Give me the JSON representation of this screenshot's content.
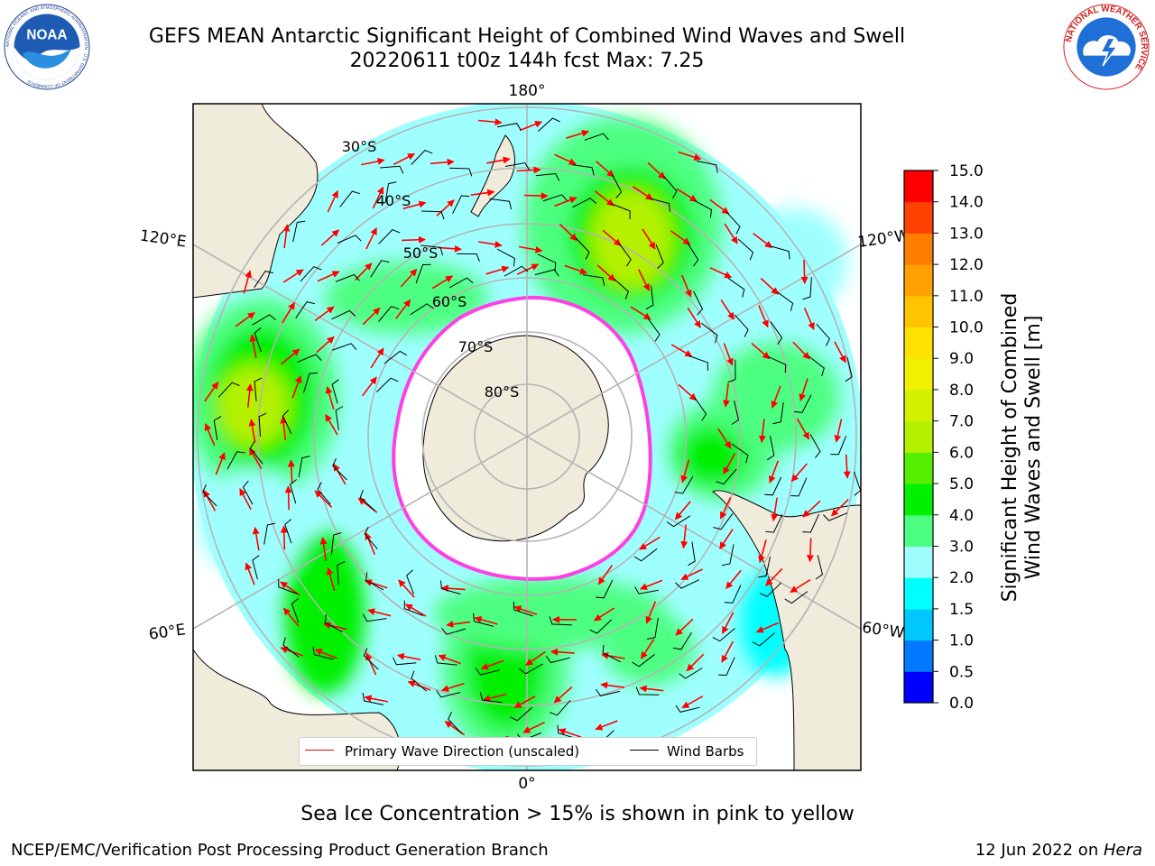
{
  "header": {
    "title_line1": "GEFS MEAN Antarctic Significant Height of Combined Wind Waves and Swell",
    "title_line2": "20220611 t00z 144h fcst   Max: 7.25"
  },
  "logos": {
    "noaa": "NOAA",
    "noaa_ring": "NATIONAL OCEANIC AND ATMOSPHERIC ADMINISTRATION · U.S. DEPARTMENT OF COMMERCE",
    "nws_ring": "NATIONAL WEATHER SERVICE"
  },
  "map": {
    "longitude_labels": {
      "top": "180°",
      "bottom": "0°",
      "upper_left": "120°E",
      "upper_right": "120°W",
      "lower_left": "60°E",
      "lower_right": "60°W"
    },
    "latitude_labels": [
      "30°S",
      "40°S",
      "50°S",
      "60°S",
      "70°S",
      "80°S"
    ],
    "colors": {
      "land": "#efecdc",
      "ice": "#ffffff",
      "ice_edge": "#ff3fe6",
      "grid": "#b4b4b4",
      "wave_arrow": "#ff0000",
      "barb": "#000000"
    }
  },
  "legend": {
    "primary": "Primary Wave Direction (unscaled)",
    "barbs": "Wind Barbs"
  },
  "colorbar": {
    "label_line1": "Significant Height of Combined",
    "label_line2": "Wind Waves and Swell [m]",
    "ticks": [
      "0.0",
      "0.5",
      "1.0",
      "1.5",
      "2.0",
      "3.0",
      "4.0",
      "5.0",
      "6.0",
      "7.0",
      "8.0",
      "9.0",
      "10.0",
      "11.0",
      "12.0",
      "13.0",
      "14.0",
      "15.0"
    ],
    "colors": [
      "#0000ff",
      "#0079ff",
      "#00c8ff",
      "#00ffff",
      "#9fffff",
      "#4dff80",
      "#00f000",
      "#55f000",
      "#b4f000",
      "#d2f000",
      "#f0f000",
      "#ffe100",
      "#ffc300",
      "#ffa000",
      "#ff7d00",
      "#ff4100",
      "#ff0000"
    ]
  },
  "footer": {
    "note": "Sea Ice Concentration > 15% is shown in pink to yellow",
    "branch": "NCEP/EMC/Verification Post Processing Product Generation Branch",
    "date": "12 Jun 2022 on ",
    "machine": "Hera"
  }
}
